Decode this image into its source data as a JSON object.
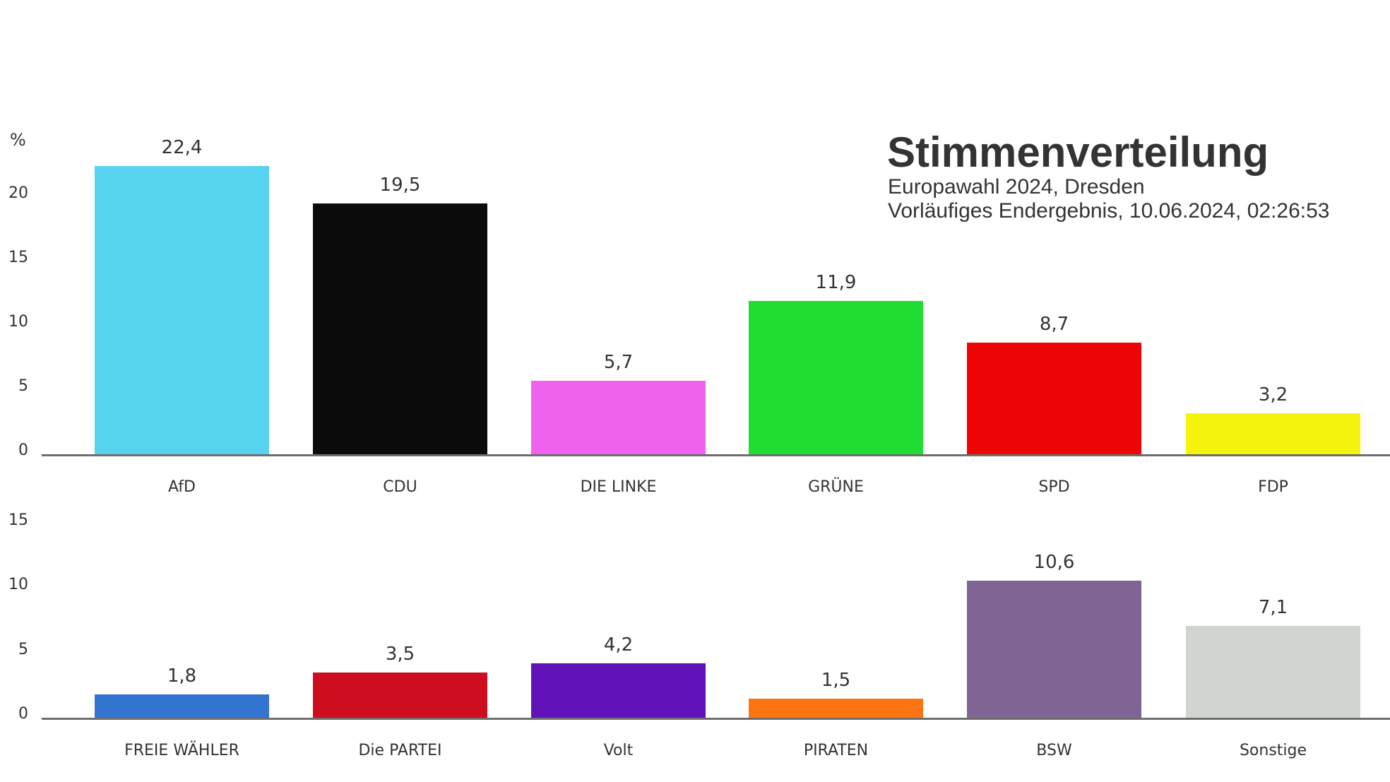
{
  "header": {
    "title": "Stimmenverteilung",
    "subtitle": "Europawahl 2024, Dresden",
    "status": "Vorläufiges Endergebnis, 10.06.2024, 02:26:53"
  },
  "axis": {
    "unit": "%"
  },
  "top_chart": {
    "yticks": [
      "0",
      "5",
      "10",
      "15",
      "20"
    ],
    "bars": [
      {
        "party": "AfD",
        "value": 22.4,
        "label": "22,4",
        "color": "#57d3f0"
      },
      {
        "party": "CDU",
        "value": 19.5,
        "label": "19,5",
        "color": "#0b0b0b"
      },
      {
        "party": "DIE LINKE",
        "value": 5.7,
        "label": "5,7",
        "color": "#ee62ee"
      },
      {
        "party": "GRÜNE",
        "value": 11.9,
        "label": "11,9",
        "color": "#21dc32"
      },
      {
        "party": "SPD",
        "value": 8.7,
        "label": "8,7",
        "color": "#ee0606"
      },
      {
        "party": "FDP",
        "value": 3.2,
        "label": "3,2",
        "color": "#f4f40e"
      }
    ]
  },
  "bottom_chart": {
    "yticks": [
      "0",
      "5",
      "10",
      "15"
    ],
    "bars": [
      {
        "party": "FREIE WÄHLER",
        "value": 1.8,
        "label": "1,8",
        "color": "#3474d1"
      },
      {
        "party": "Die PARTEI",
        "value": 3.5,
        "label": "3,5",
        "color": "#cd0e1f"
      },
      {
        "party": "Volt",
        "value": 4.2,
        "label": "4,2",
        "color": "#6011b8"
      },
      {
        "party": "PIRATEN",
        "value": 1.5,
        "label": "1,5",
        "color": "#fd7512"
      },
      {
        "party": "BSW",
        "value": 10.6,
        "label": "10,6",
        "color": "#806494"
      },
      {
        "party": "Sonstige",
        "value": 7.1,
        "label": "7,1",
        "color": "#d2d5cf"
      }
    ]
  },
  "chart_data": [
    {
      "type": "bar",
      "title": "Stimmenverteilung",
      "subtitle": "Europawahl 2024, Dresden — Vorläufiges Endergebnis, 10.06.2024, 02:26:53",
      "xlabel": "",
      "ylabel": "%",
      "categories": [
        "AfD",
        "CDU",
        "DIE LINKE",
        "GRÜNE",
        "SPD",
        "FDP"
      ],
      "values": [
        22.4,
        19.5,
        5.7,
        11.9,
        8.7,
        3.2
      ],
      "colors": [
        "#57d3f0",
        "#0b0b0b",
        "#ee62ee",
        "#21dc32",
        "#ee0606",
        "#f4f40e"
      ],
      "ylim": [
        0,
        22.4
      ],
      "yticks": [
        0,
        5,
        10,
        15,
        20
      ],
      "grid": false,
      "legend": "none"
    },
    {
      "type": "bar",
      "xlabel": "",
      "ylabel": "%",
      "categories": [
        "FREIE WÄHLER",
        "Die PARTEI",
        "Volt",
        "PIRATEN",
        "BSW",
        "Sonstige"
      ],
      "values": [
        1.8,
        3.5,
        4.2,
        1.5,
        10.6,
        7.1
      ],
      "colors": [
        "#3474d1",
        "#cd0e1f",
        "#6011b8",
        "#fd7512",
        "#806494",
        "#d2d5cf"
      ],
      "ylim": [
        0,
        15
      ],
      "yticks": [
        0,
        5,
        10,
        15
      ],
      "grid": false,
      "legend": "none"
    }
  ]
}
